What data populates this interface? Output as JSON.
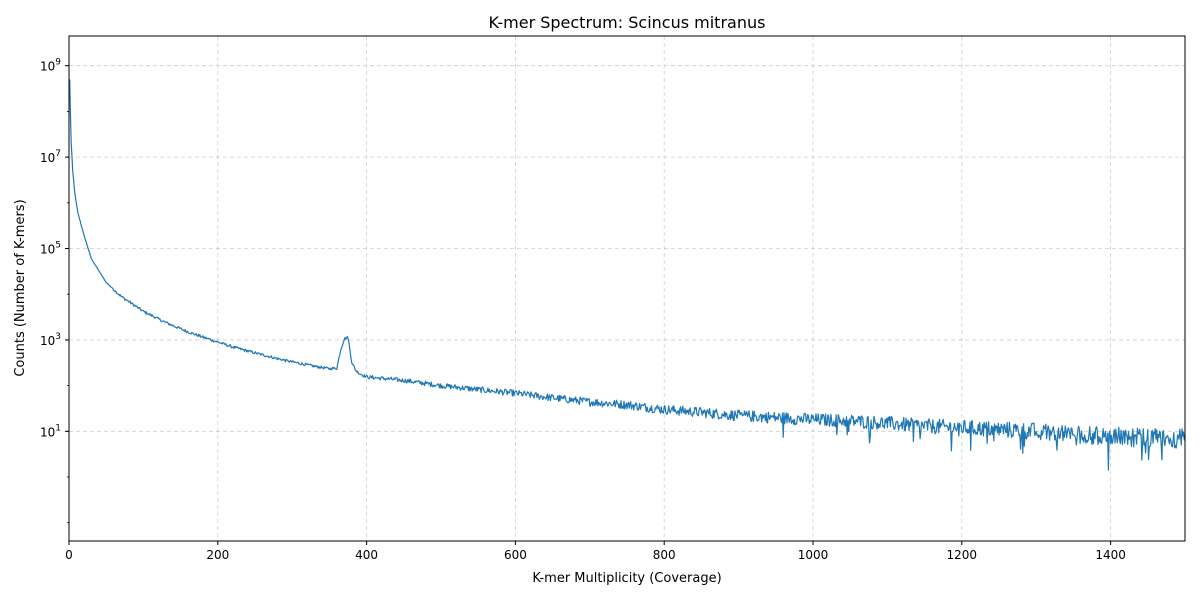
{
  "chart_data": {
    "type": "line",
    "title": "K-mer Spectrum: Scincus mitranus",
    "xlabel": "K-mer Multiplicity (Coverage)",
    "ylabel": "Counts (Number of K-mers)",
    "xlim": [
      0,
      1500
    ],
    "ylim_log10": [
      -1.4,
      9.65
    ],
    "yscale": "log",
    "grid": true,
    "x_ticks": [
      {
        "value": 0,
        "label": "0"
      },
      {
        "value": 200,
        "label": "200"
      },
      {
        "value": 400,
        "label": "400"
      },
      {
        "value": 600,
        "label": "600"
      },
      {
        "value": 800,
        "label": "800"
      },
      {
        "value": 1000,
        "label": "1000"
      },
      {
        "value": 1200,
        "label": "1200"
      },
      {
        "value": 1400,
        "label": "1400"
      }
    ],
    "y_ticks": [
      {
        "value": 10,
        "base": "10",
        "exp": "1"
      },
      {
        "value": 1000,
        "base": "10",
        "exp": "3"
      },
      {
        "value": 100000,
        "base": "10",
        "exp": "5"
      },
      {
        "value": 10000000,
        "base": "10",
        "exp": "7"
      },
      {
        "value": 1000000000,
        "base": "10",
        "exp": "9"
      }
    ],
    "line_color": "#1f77b4",
    "series": [
      {
        "x": [
          1,
          2,
          3,
          5,
          8,
          12,
          20,
          30,
          50,
          70,
          100,
          130,
          160,
          180,
          200,
          220,
          250,
          280,
          300,
          330,
          350,
          360,
          365,
          370,
          375,
          380,
          385,
          390,
          400,
          450,
          500,
          550,
          600,
          650,
          700,
          750,
          800,
          850,
          900,
          950,
          1000,
          1050,
          1100,
          1150,
          1200,
          1250,
          1300,
          1340,
          1370,
          1400,
          1450,
          1500
        ],
        "y": [
          500000000,
          80000000,
          20000000,
          5000000,
          1500000,
          600000,
          200000,
          60000,
          18000,
          9000,
          4200,
          2400,
          1500,
          1150,
          900,
          700,
          520,
          390,
          330,
          265,
          235,
          240,
          600,
          1050,
          1150,
          330,
          220,
          185,
          155,
          130,
          100,
          82,
          68,
          54,
          44,
          38,
          30,
          26,
          22,
          20,
          18,
          17,
          15,
          13,
          12,
          11,
          10,
          9,
          8,
          8,
          7,
          7
        ]
      }
    ]
  }
}
